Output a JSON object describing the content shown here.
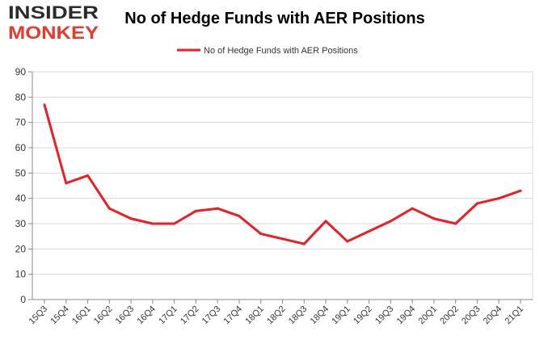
{
  "logo": {
    "line1": "INSIDER",
    "line2": "MONKEY"
  },
  "colors": {
    "series": "#ee1c25",
    "grid": "#d9d9d9",
    "axis": "#888888",
    "logo_dark": "#2b2b2b",
    "logo_red": "#e63a2e"
  },
  "chart_data": {
    "type": "line",
    "title": "No of Hedge Funds with AER Positions",
    "xlabel": "",
    "ylabel": "",
    "ylim": [
      0,
      90
    ],
    "yticks": [
      0,
      10,
      20,
      30,
      40,
      50,
      60,
      70,
      80,
      90
    ],
    "grid": true,
    "legend_position": "top-center",
    "categories": [
      "15Q3",
      "15Q4",
      "16Q1",
      "16Q2",
      "16Q3",
      "16Q4",
      "17Q1",
      "17Q2",
      "17Q3",
      "17Q4",
      "18Q1",
      "18Q2",
      "18Q3",
      "18Q4",
      "19Q1",
      "19Q2",
      "19Q3",
      "19Q4",
      "20Q1",
      "20Q2",
      "20Q3",
      "20Q4",
      "21Q1"
    ],
    "series": [
      {
        "name": "No of Hedge Funds with AER Positions",
        "values": [
          77,
          46,
          49,
          36,
          32,
          30,
          30,
          35,
          36,
          33,
          26,
          24,
          22,
          31,
          23,
          27,
          31,
          36,
          32,
          30,
          38,
          40,
          43
        ]
      }
    ]
  }
}
